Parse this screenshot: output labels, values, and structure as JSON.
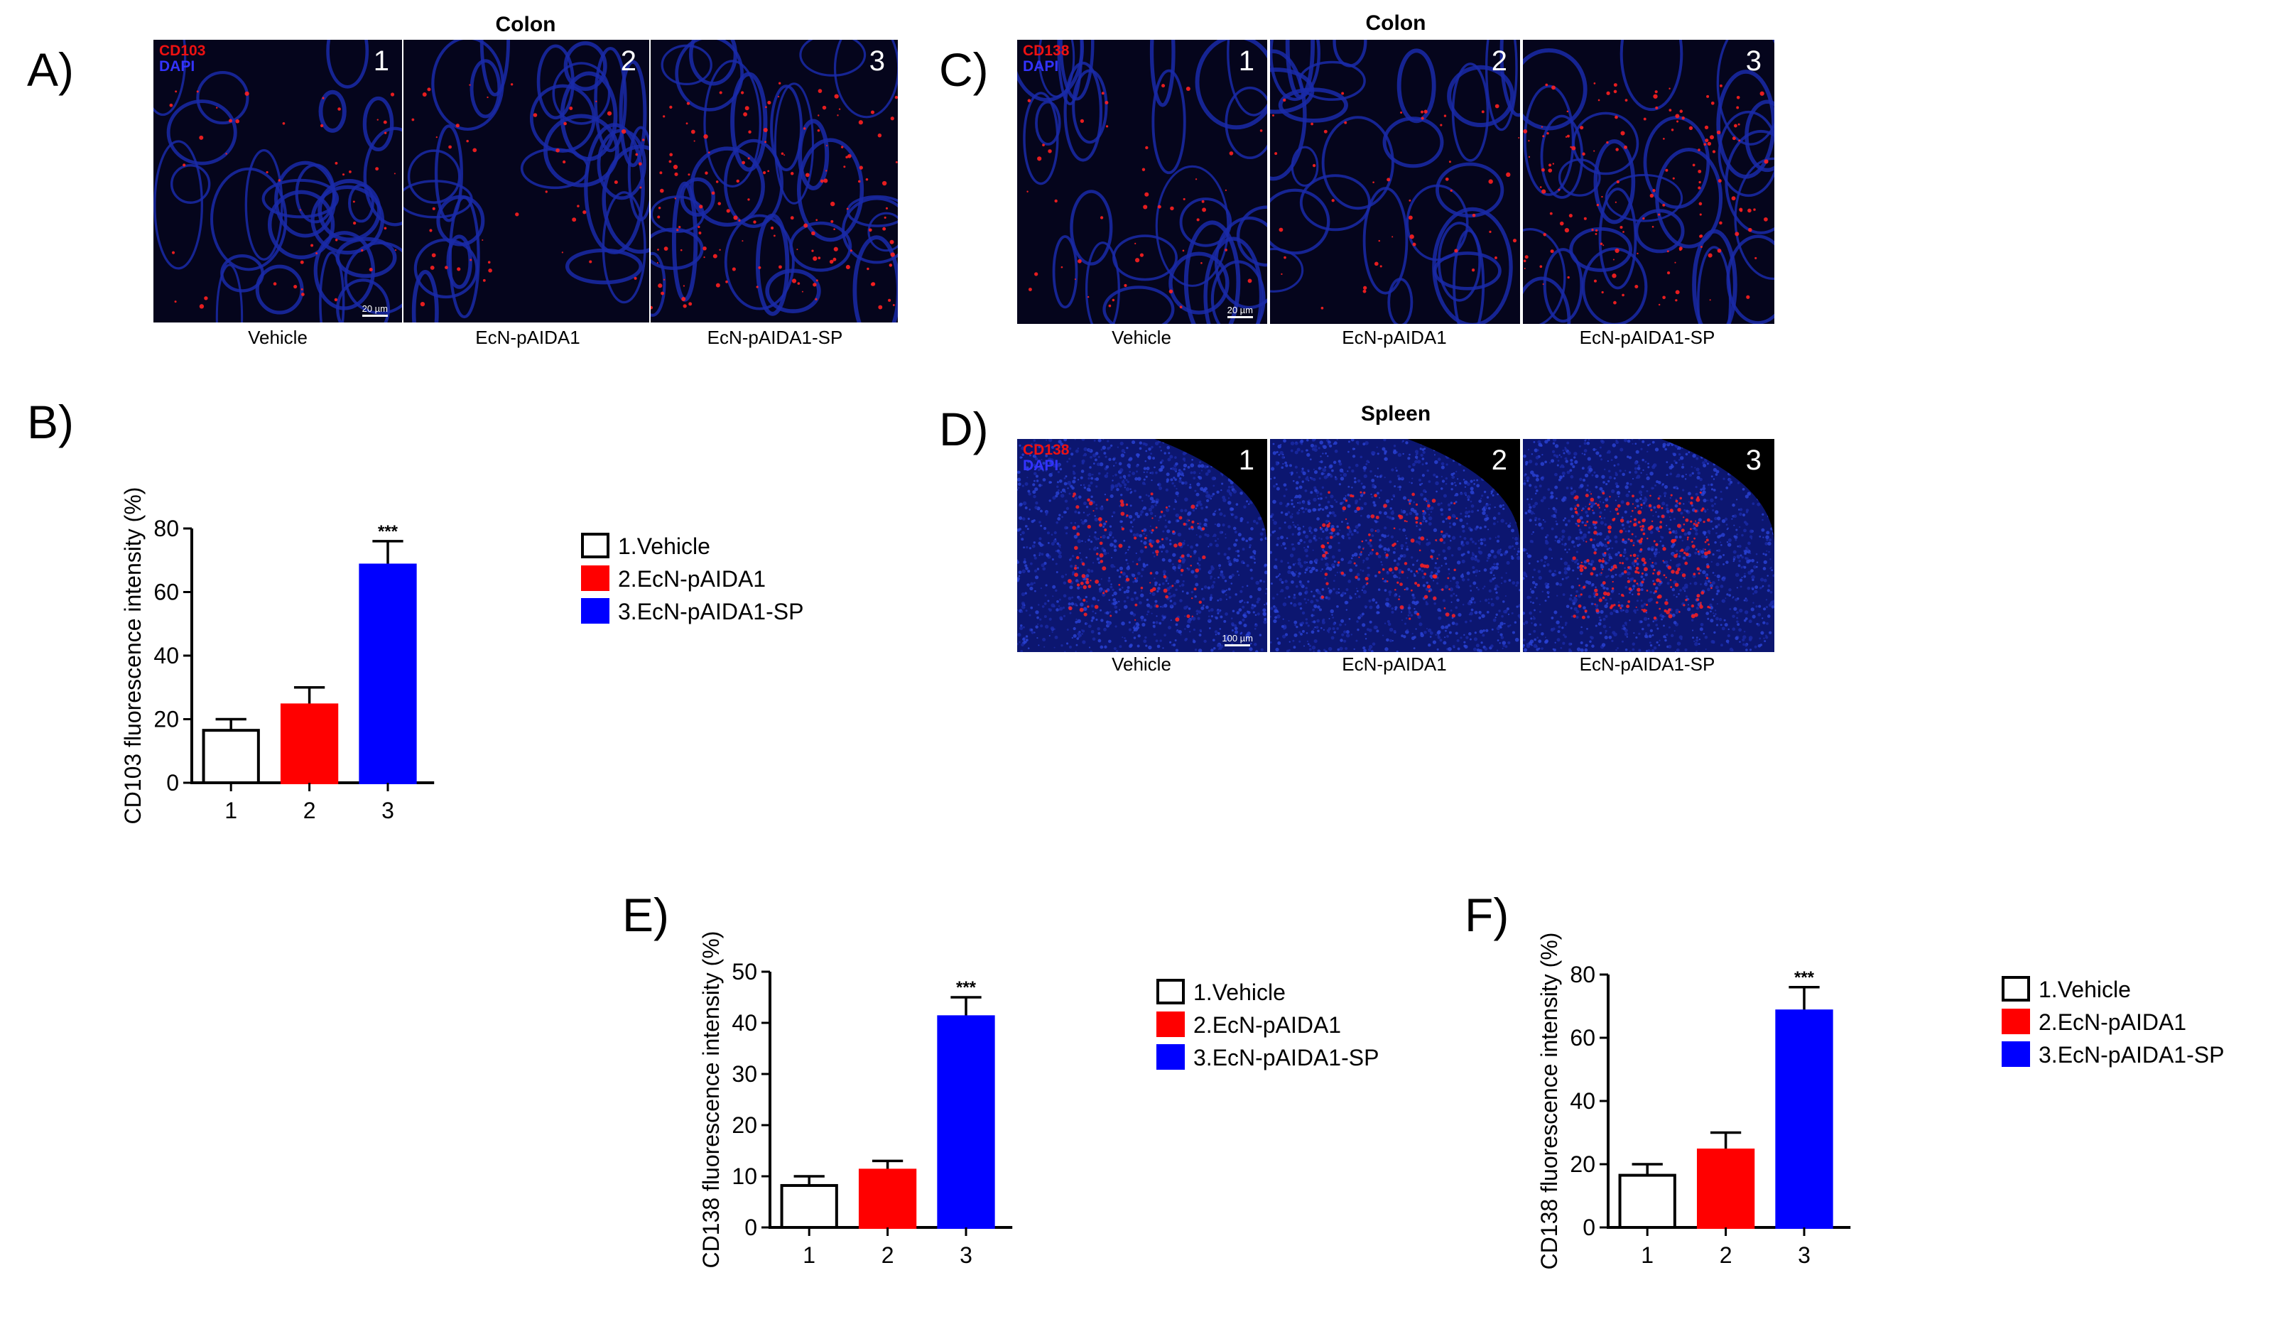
{
  "panels": {
    "A": {
      "letter": "A)",
      "title": "Colon",
      "stain_red": "CD103",
      "stain_blue": "DAPI",
      "scale": "20 µm",
      "images": [
        {
          "num": "1",
          "caption": "Vehicle"
        },
        {
          "num": "2",
          "caption": "EcN-pAIDA1"
        },
        {
          "num": "3",
          "caption": "EcN-pAIDA1-SP"
        }
      ]
    },
    "B": {
      "letter": "B)"
    },
    "C": {
      "letter": "C)",
      "title": "Colon",
      "stain_red": "CD138",
      "stain_blue": "DAPI",
      "scale": "20 µm",
      "images": [
        {
          "num": "1",
          "caption": "Vehicle"
        },
        {
          "num": "2",
          "caption": "EcN-pAIDA1"
        },
        {
          "num": "3",
          "caption": "EcN-pAIDA1-SP"
        }
      ]
    },
    "D": {
      "letter": "D)",
      "title": "Spleen",
      "stain_red": "CD138",
      "stain_blue": "DAPI",
      "scale": "100 µm",
      "images": [
        {
          "num": "1",
          "caption": "Vehicle"
        },
        {
          "num": "2",
          "caption": "EcN-pAIDA1"
        },
        {
          "num": "3",
          "caption": "EcN-pAIDA1-SP"
        }
      ]
    },
    "E": {
      "letter": "E)"
    },
    "F": {
      "letter": "F)"
    }
  },
  "colors": {
    "vehicle": "#ffffff",
    "ecn": "#ff0000",
    "ecn_sp": "#0000ff",
    "stain_red": "#ff2020",
    "dapi": "#1a2aa8"
  },
  "chart_data": [
    {
      "id": "B",
      "type": "bar",
      "categories": [
        "1",
        "2",
        "3"
      ],
      "values": [
        16.5,
        24.5,
        68.5
      ],
      "errors": [
        3.5,
        5.5,
        7.5
      ],
      "ylabel": "CD103 fluorescence intensity (%)",
      "ylim": [
        0,
        80
      ],
      "yticks": [
        0,
        20,
        40,
        60,
        80
      ],
      "significance": [
        "",
        "",
        "***"
      ],
      "legend": [
        "1.Vehicle",
        "2.EcN-pAIDA1",
        "3.EcN-pAIDA1-SP"
      ],
      "colors": [
        "#ffffff",
        "#ff0000",
        "#0000ff"
      ]
    },
    {
      "id": "E",
      "type": "bar",
      "categories": [
        "1",
        "2",
        "3"
      ],
      "values": [
        8.2,
        11.2,
        41.2
      ],
      "errors": [
        1.8,
        1.8,
        3.8
      ],
      "ylabel": "CD138 fluorescence intensity (%)",
      "ylim": [
        0,
        50
      ],
      "yticks": [
        0,
        10,
        20,
        30,
        40,
        50
      ],
      "significance": [
        "",
        "",
        "***"
      ],
      "legend": [
        "1.Vehicle",
        "2.EcN-pAIDA1",
        "3.EcN-pAIDA1-SP"
      ],
      "colors": [
        "#ffffff",
        "#ff0000",
        "#0000ff"
      ]
    },
    {
      "id": "F",
      "type": "bar",
      "categories": [
        "1",
        "2",
        "3"
      ],
      "values": [
        16.5,
        24.5,
        68.5
      ],
      "errors": [
        3.5,
        5.5,
        7.5
      ],
      "ylabel": "CD138 fluorescence intensity (%)",
      "ylim": [
        0,
        80
      ],
      "yticks": [
        0,
        20,
        40,
        60,
        80
      ],
      "significance": [
        "",
        "",
        "***"
      ],
      "legend": [
        "1.Vehicle",
        "2.EcN-pAIDA1",
        "3.EcN-pAIDA1-SP"
      ],
      "colors": [
        "#ffffff",
        "#ff0000",
        "#0000ff"
      ]
    }
  ]
}
